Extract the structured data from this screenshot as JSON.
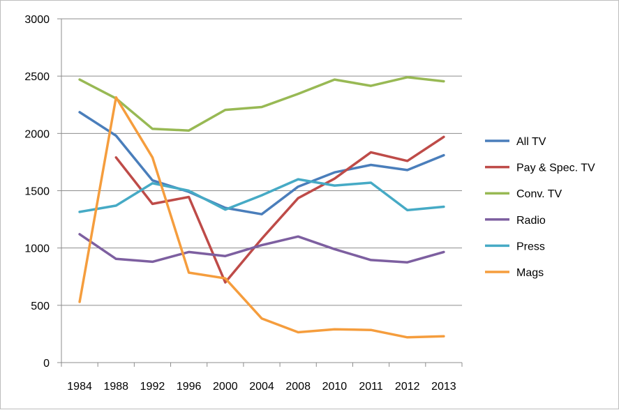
{
  "chart_data": {
    "type": "line",
    "title": "",
    "xlabel": "",
    "ylabel": "",
    "categories": [
      "1984",
      "1988",
      "1992",
      "1996",
      "2000",
      "2004",
      "2008",
      "2010",
      "2011",
      "2012",
      "2013"
    ],
    "ylim": [
      0,
      3000
    ],
    "yticks": [
      "0",
      "500",
      "1000",
      "1500",
      "2000",
      "2500",
      "3000"
    ],
    "grid": true,
    "legend_position": "right",
    "series": [
      {
        "name": "All TV",
        "color": "#4a7ebb",
        "values": [
          2185,
          1980,
          1590,
          1490,
          1350,
          1295,
          1535,
          1660,
          1725,
          1680,
          1810
        ]
      },
      {
        "name": "Pay & Spec. TV",
        "color": "#be4b48",
        "values": [
          null,
          1790,
          1385,
          1445,
          700,
          1080,
          1435,
          1605,
          1835,
          1760,
          1970
        ]
      },
      {
        "name": "Conv. TV",
        "color": "#98b954",
        "values": [
          2470,
          2305,
          2040,
          2025,
          2205,
          2230,
          2345,
          2470,
          2415,
          2490,
          2455
        ]
      },
      {
        "name": "Radio",
        "color": "#7d5fa0",
        "values": [
          1120,
          905,
          880,
          965,
          930,
          1025,
          1100,
          990,
          895,
          875,
          965
        ]
      },
      {
        "name": "Press",
        "color": "#46aac5",
        "values": [
          1315,
          1370,
          1565,
          1500,
          1335,
          1460,
          1600,
          1545,
          1570,
          1330,
          1360
        ]
      },
      {
        "name": "Mags",
        "color": "#f59d3d",
        "values": [
          530,
          2315,
          1790,
          785,
          735,
          385,
          265,
          290,
          285,
          220,
          230
        ]
      }
    ]
  }
}
